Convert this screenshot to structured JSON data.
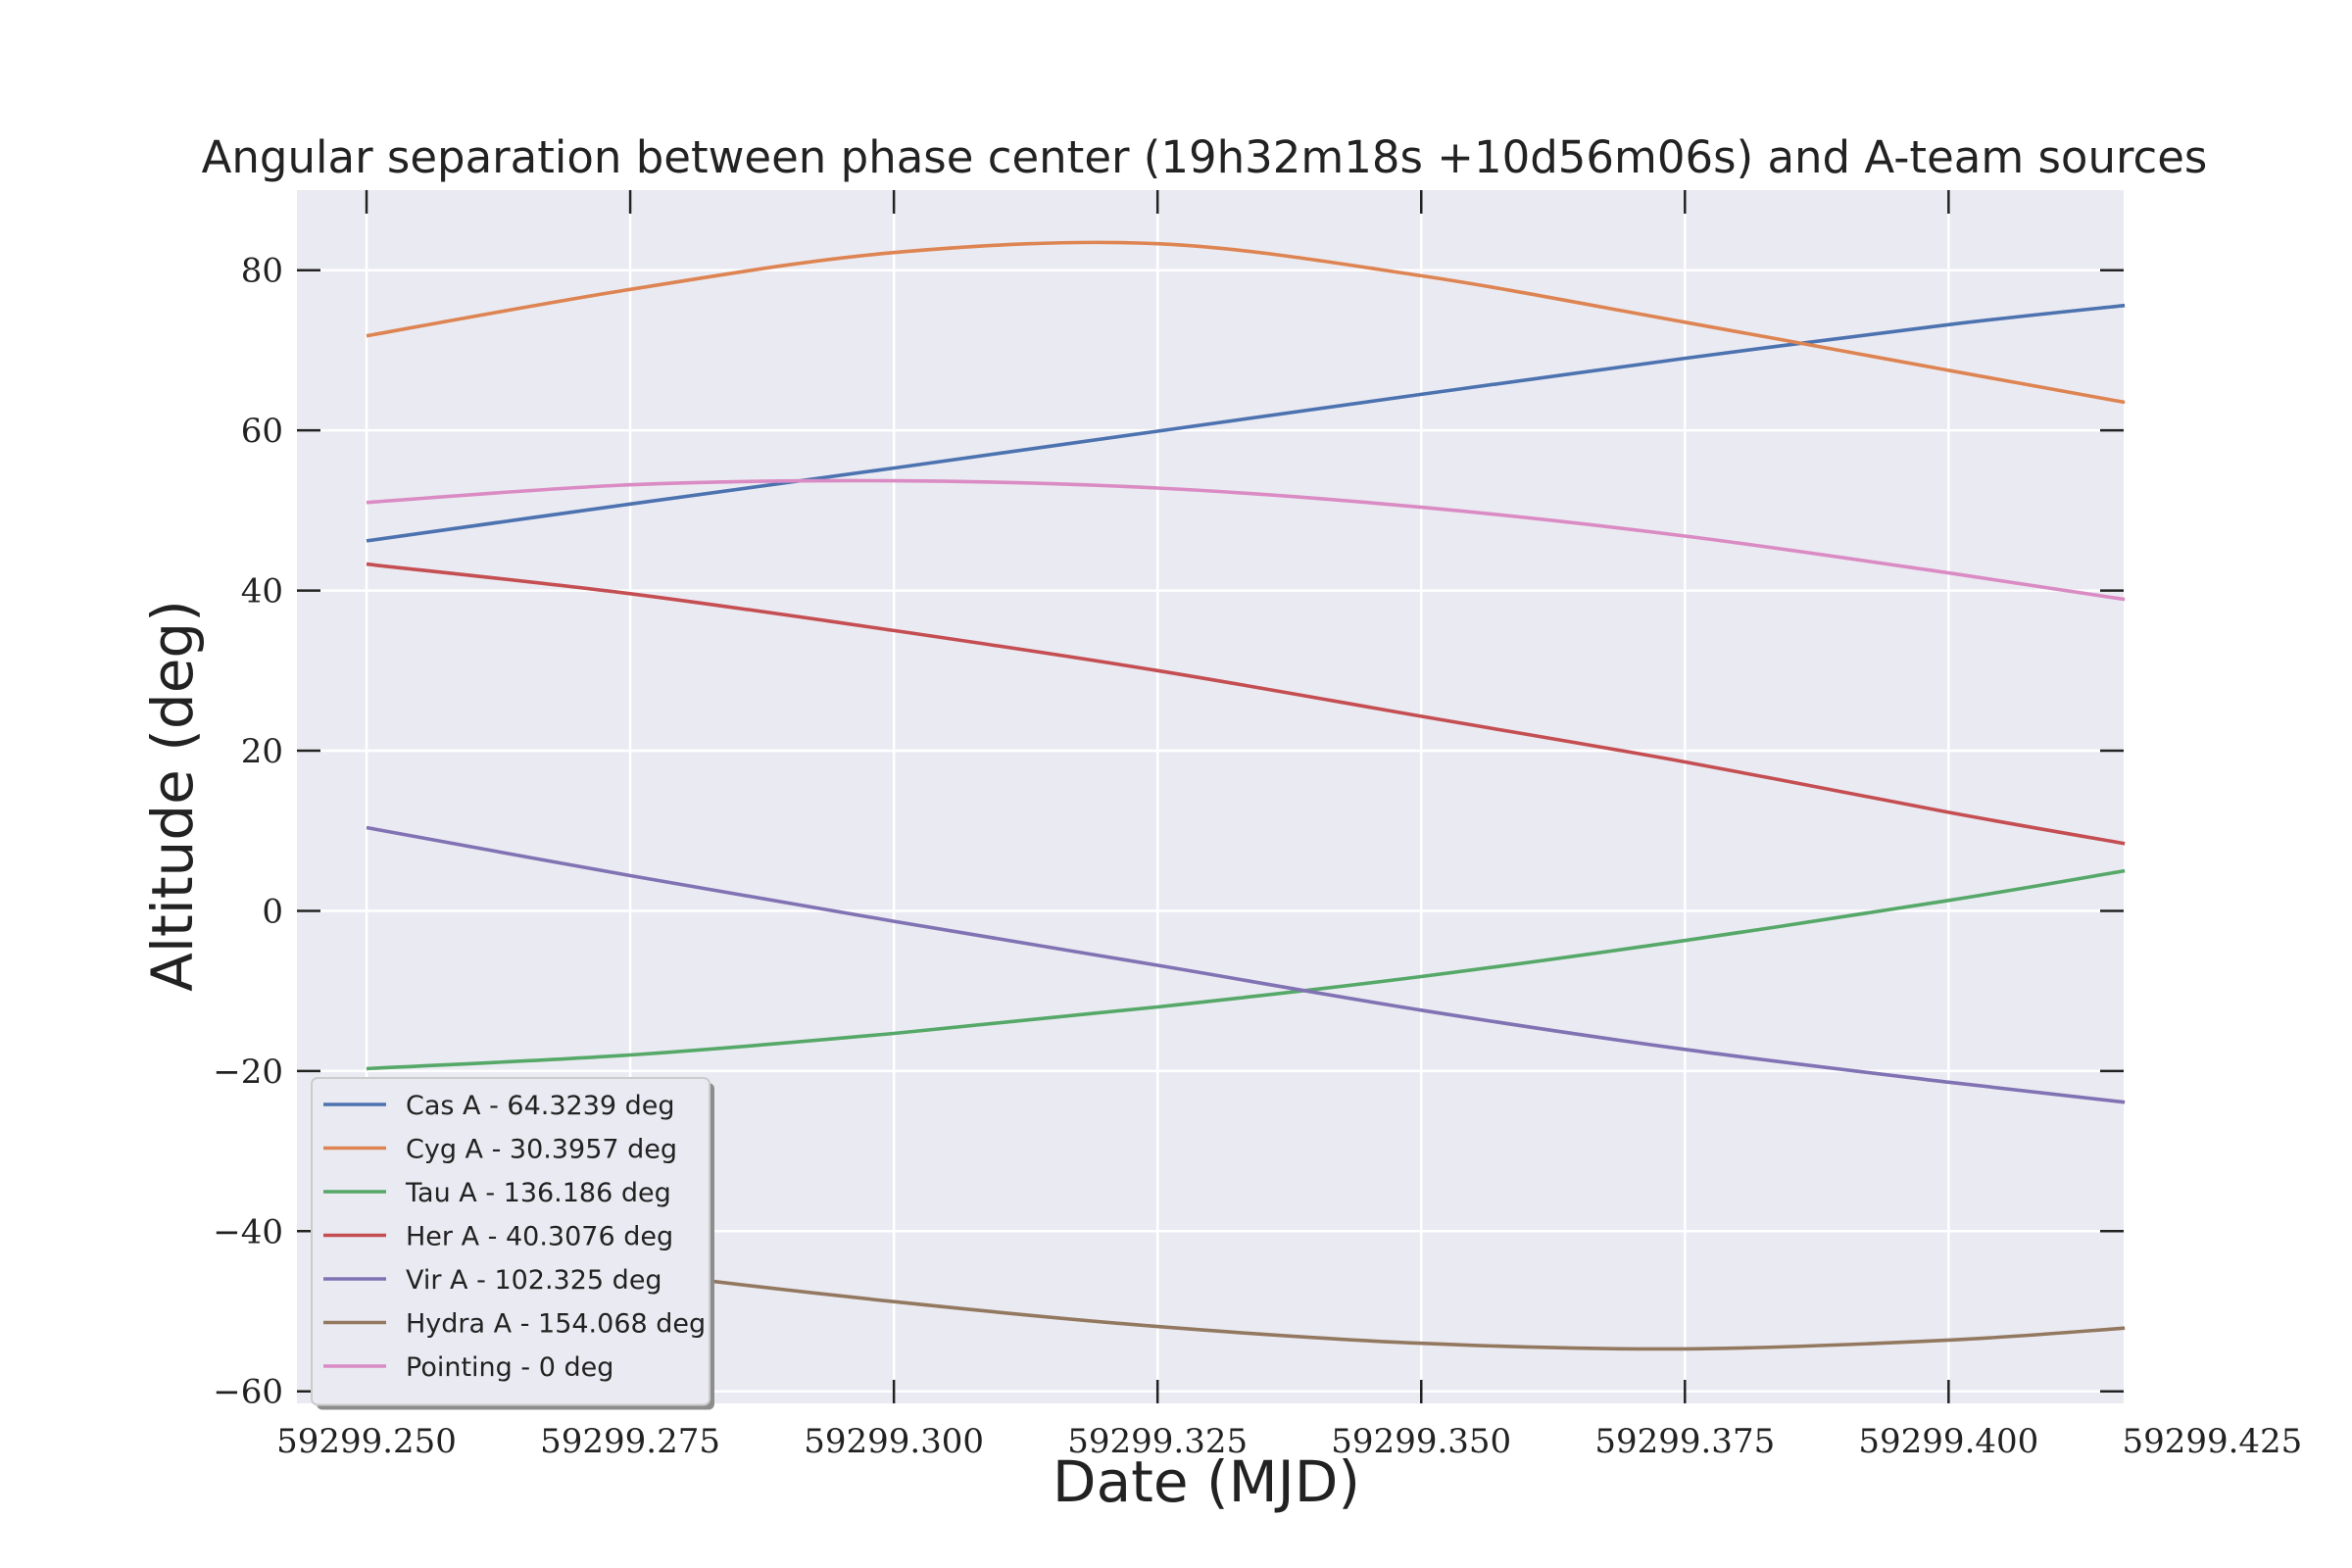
{
  "chart_data": {
    "type": "line",
    "title": "Angular separation between phase center (19h32m18s +10d56m06s) and A-team sources",
    "xlabel": "Date (MJD)",
    "ylabel": "Altitude (deg)",
    "xlim": [
      59299.2434,
      59299.4166
    ],
    "ylim": [
      -61.5,
      90
    ],
    "xticks": [
      59299.25,
      59299.275,
      59299.3,
      59299.325,
      59299.35,
      59299.375,
      59299.4,
      59299.425
    ],
    "xtick_labels": [
      "59299.250",
      "59299.275",
      "59299.300",
      "59299.325",
      "59299.350",
      "59299.375",
      "59299.400",
      "59299.425"
    ],
    "yticks": [
      -60,
      -40,
      -20,
      0,
      20,
      40,
      60,
      80
    ],
    "ytick_labels": [
      "−60",
      "−40",
      "−20",
      "0",
      "20",
      "40",
      "60",
      "80"
    ],
    "grid": true,
    "legend_position": "lower-left",
    "background": "#eaeaf2",
    "x": [
      59299.25,
      59299.275,
      59299.3,
      59299.325,
      59299.35,
      59299.375,
      59299.4,
      59299.4167
    ],
    "series": [
      {
        "name": "Cas A - 64.3239 deg",
        "color": "#4c72b0",
        "values": [
          46.2,
          50.8,
          55.3,
          59.9,
          64.5,
          69.0,
          73.2,
          75.6
        ]
      },
      {
        "name": "Cyg A - 30.3957 deg",
        "color": "#dd8452",
        "values": [
          71.8,
          77.6,
          82.2,
          83.3,
          79.3,
          73.5,
          67.5,
          63.5
        ]
      },
      {
        "name": "Tau A - 136.186 deg",
        "color": "#55a868",
        "values": [
          -19.7,
          -18.0,
          -15.3,
          -12.0,
          -8.2,
          -3.7,
          1.3,
          5.0
        ]
      },
      {
        "name": "Her A - 40.3076 deg",
        "color": "#c44e52",
        "values": [
          43.3,
          39.6,
          35.0,
          30.0,
          24.3,
          18.6,
          12.3,
          8.4
        ]
      },
      {
        "name": "Vir A - 102.325 deg",
        "color": "#8172b3",
        "values": [
          10.4,
          4.4,
          -1.3,
          -6.8,
          -12.4,
          -17.3,
          -21.4,
          -23.9
        ]
      },
      {
        "name": "Hydra A - 154.068 deg",
        "color": "#937860",
        "values": [
          -40.5,
          -45.0,
          -48.8,
          -51.9,
          -54.0,
          -54.7,
          -53.6,
          -52.1
        ]
      },
      {
        "name": "Pointing - 0 deg",
        "color": "#da8bc3",
        "values": [
          51.0,
          53.2,
          53.7,
          52.8,
          50.4,
          46.8,
          42.2,
          38.9
        ]
      }
    ]
  }
}
